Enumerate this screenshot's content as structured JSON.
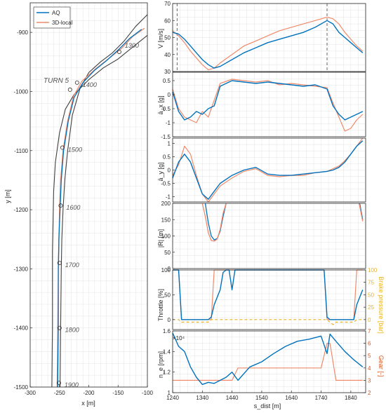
{
  "colors": {
    "aq": "#0072BD",
    "local": "#F08A6A",
    "track": "#404040",
    "brake": "#EDB120",
    "grid": "#e3e3e3"
  },
  "chart_data": [
    {
      "type": "line",
      "name": "track-map",
      "xlabel": "x [m]",
      "ylabel": "y [m]",
      "xlim": [
        -300,
        -100
      ],
      "ylim": [
        -1500,
        -850
      ],
      "xticks": [
        "-300",
        "-250",
        "-200",
        "-150",
        "-100"
      ],
      "yticks": [
        "-900",
        "-1000",
        "-1100",
        "-1200",
        "-1300",
        "-1400",
        "-1500"
      ],
      "grid": true,
      "legend": {
        "position": "top-left",
        "entries": [
          "AQ",
          "3D-local"
        ]
      },
      "annotation": "TURN 5",
      "series": [
        {
          "name": "AQ",
          "x": [
            -110,
            -130,
            -150,
            -170,
            -190,
            -210,
            -225,
            -235,
            -243,
            -247,
            -249,
            -251,
            -252,
            -252,
            -253
          ],
          "y": [
            -895,
            -910,
            -930,
            -948,
            -964,
            -985,
            -1010,
            -1050,
            -1100,
            -1150,
            -1200,
            -1250,
            -1300,
            -1400,
            -1500
          ]
        },
        {
          "name": "3D-local",
          "x": [
            -105,
            -125,
            -145,
            -168,
            -190,
            -212,
            -226,
            -236,
            -244,
            -248,
            -250,
            -251,
            -252,
            -253,
            -254
          ],
          "y": [
            -893,
            -907,
            -928,
            -946,
            -963,
            -983,
            -1008,
            -1050,
            -1100,
            -1150,
            -1200,
            -1250,
            -1300,
            -1400,
            -1500
          ]
        }
      ],
      "track_edges": [
        {
          "x": [
            -100,
            -120,
            -140,
            -160,
            -180,
            -200,
            -215,
            -228,
            -236,
            -241,
            -244,
            -246,
            -247,
            -248,
            -249
          ],
          "y": [
            -870,
            -890,
            -915,
            -935,
            -950,
            -968,
            -995,
            -1040,
            -1100,
            -1150,
            -1200,
            -1250,
            -1300,
            -1400,
            -1500
          ]
        },
        {
          "x": [
            -100,
            -125,
            -150,
            -175,
            -200,
            -225,
            -240,
            -250,
            -257,
            -260,
            -261,
            -262,
            -262,
            -262,
            -263
          ],
          "y": [
            -905,
            -925,
            -945,
            -960,
            -980,
            -1005,
            -1030,
            -1070,
            -1120,
            -1170,
            -1220,
            -1270,
            -1300,
            -1400,
            -1500
          ]
        }
      ],
      "markers": [
        {
          "label": "1300",
          "x": -148,
          "y": -933
        },
        {
          "label": "1400",
          "x": -220,
          "y": -985
        },
        {
          "label": "",
          "x": -232,
          "y": -997
        },
        {
          "label": "1500",
          "x": -245,
          "y": -1095
        },
        {
          "label": "1600",
          "x": -248,
          "y": -1193
        },
        {
          "label": "1700",
          "x": -250,
          "y": -1290
        },
        {
          "label": "1800",
          "x": -250,
          "y": -1400
        },
        {
          "label": "1900",
          "x": -251,
          "y": -1493
        }
      ]
    },
    {
      "type": "line",
      "name": "speed",
      "ylabel": "V [m/s]",
      "ylim": [
        30,
        70
      ],
      "yticks": [
        "30",
        "40",
        "50",
        "60",
        "70"
      ],
      "vlines": [
        1255,
        1760
      ],
      "x": [
        1240,
        1260,
        1280,
        1300,
        1320,
        1340,
        1360,
        1380,
        1400,
        1440,
        1480,
        1520,
        1560,
        1600,
        1640,
        1680,
        1720,
        1760,
        1780,
        1800,
        1820,
        1840,
        1860,
        1880
      ],
      "series": [
        {
          "name": "AQ",
          "values": [
            53,
            52,
            49,
            45,
            41,
            37,
            34,
            32,
            33,
            37,
            41,
            44,
            47,
            49,
            51,
            53,
            56,
            60,
            58,
            53,
            50,
            47,
            44,
            41
          ]
        },
        {
          "name": "3D-local",
          "values": [
            54,
            51,
            47,
            42,
            38,
            34,
            31,
            32,
            35,
            40,
            45,
            48,
            51,
            54,
            56,
            58,
            60,
            62,
            61,
            58,
            53,
            49,
            45,
            42
          ]
        }
      ]
    },
    {
      "type": "line",
      "name": "long-accel",
      "ylabel": "ā_x [g]",
      "ylim": [
        -1.5,
        0.8
      ],
      "yticks": [
        "-1.5",
        "-1",
        "-0.5",
        "0",
        "0.5"
      ],
      "x": [
        1240,
        1260,
        1280,
        1300,
        1320,
        1340,
        1360,
        1380,
        1400,
        1440,
        1480,
        1520,
        1560,
        1600,
        1640,
        1680,
        1720,
        1760,
        1780,
        1800,
        1820,
        1840,
        1860,
        1880
      ],
      "series": [
        {
          "name": "AQ",
          "values": [
            0.1,
            -0.6,
            -0.9,
            -0.8,
            -0.6,
            -0.7,
            -0.5,
            -0.4,
            0.3,
            0.5,
            0.45,
            0.4,
            0.45,
            0.4,
            0.35,
            0.3,
            0.35,
            0.2,
            -0.4,
            -0.7,
            -0.9,
            -0.8,
            -0.7,
            -0.6
          ]
        },
        {
          "name": "3D-local",
          "values": [
            0.2,
            -0.5,
            -0.8,
            -0.9,
            -1.0,
            -0.6,
            -0.8,
            -0.2,
            0.4,
            0.55,
            0.5,
            0.45,
            0.5,
            0.35,
            0.4,
            0.35,
            0.3,
            0.25,
            -0.3,
            -0.8,
            -1.3,
            -1.2,
            -0.9,
            -0.7
          ]
        }
      ]
    },
    {
      "type": "line",
      "name": "lat-accel",
      "ylabel": "ā_y [g]",
      "ylim": [
        -1.2,
        1.2
      ],
      "yticks": [
        "-1",
        "-0.5",
        "0",
        "0.5",
        "1"
      ],
      "x": [
        1240,
        1260,
        1280,
        1300,
        1320,
        1340,
        1360,
        1380,
        1400,
        1440,
        1480,
        1520,
        1560,
        1600,
        1640,
        1680,
        1720,
        1760,
        1780,
        1800,
        1820,
        1840,
        1860,
        1880
      ],
      "series": [
        {
          "name": "AQ",
          "values": [
            -0.3,
            0.3,
            0.6,
            0.3,
            -0.3,
            -0.9,
            -1.1,
            -0.8,
            -0.5,
            -0.2,
            0.0,
            0.1,
            -0.15,
            -0.2,
            -0.2,
            -0.15,
            -0.1,
            -0.05,
            0.0,
            0.1,
            0.3,
            0.6,
            0.9,
            1.1
          ]
        },
        {
          "name": "3D-local",
          "values": [
            -0.2,
            0.2,
            0.9,
            0.6,
            -0.2,
            -0.9,
            -1.2,
            -0.9,
            -0.6,
            -0.3,
            -0.05,
            0.05,
            -0.2,
            -0.25,
            -0.2,
            -0.2,
            -0.1,
            -0.05,
            0.05,
            0.15,
            0.35,
            0.6,
            0.9,
            1.2
          ]
        }
      ]
    },
    {
      "type": "line",
      "name": "radius",
      "ylabel": "|R| [m]",
      "ylim": [
        0,
        200
      ],
      "yticks": [
        "0",
        "50",
        "100",
        "150",
        "200"
      ],
      "segments": [
        {
          "name": "AQ",
          "x": [
            1350,
            1360,
            1370,
            1380,
            1390,
            1400,
            1410,
            1420
          ],
          "values": [
            200,
            140,
            100,
            88,
            92,
            115,
            160,
            200
          ]
        },
        {
          "name": "3D-local",
          "x": [
            1340,
            1350,
            1360,
            1370,
            1380,
            1390,
            1400,
            1410,
            1420
          ],
          "values": [
            200,
            160,
            110,
            86,
            84,
            90,
            120,
            170,
            200
          ]
        },
        {
          "name": "AQ",
          "x": [
            1870,
            1880
          ],
          "values": [
            200,
            150
          ]
        },
        {
          "name": "3D-local",
          "x": [
            1868,
            1880
          ],
          "values": [
            200,
            145
          ]
        }
      ]
    },
    {
      "type": "line",
      "name": "throttle-brake",
      "ylabel": "Throttle [%]",
      "y2label": "Brake pressure [bar]",
      "ylim": [
        -20,
        100
      ],
      "yticks": [
        "0",
        "50",
        "100"
      ],
      "y2ticks": [
        "0",
        "25",
        "50",
        "75",
        "100"
      ],
      "x": [
        1240,
        1250,
        1260,
        1270,
        1360,
        1370,
        1380,
        1400,
        1410,
        1420,
        1430,
        1440,
        1450,
        1460,
        1740,
        1750,
        1760,
        1770,
        1780,
        1790,
        1850,
        1860,
        1880
      ],
      "series": [
        {
          "name": "AQ",
          "values": [
            100,
            100,
            100,
            0,
            0,
            5,
            30,
            60,
            95,
            100,
            100,
            60,
            100,
            100,
            100,
            100,
            5,
            0,
            0,
            0,
            0,
            30,
            60
          ]
        },
        {
          "name": "3D-local",
          "values": [
            100,
            100,
            100,
            0,
            0,
            0,
            100,
            100,
            100,
            100,
            100,
            100,
            100,
            100,
            100,
            100,
            0,
            0,
            0,
            0,
            0,
            100,
            100
          ]
        },
        {
          "name": "brake",
          "values": [
            0,
            0,
            0,
            -5,
            -5,
            0,
            0,
            0,
            0,
            0,
            0,
            0,
            0,
            0,
            0,
            0,
            0,
            -5,
            -10,
            -5,
            -5,
            0,
            0
          ]
        }
      ]
    },
    {
      "type": "line",
      "name": "rpm-gear",
      "ylabel": "n_e [rpm]",
      "y2label": "Gear [-]",
      "xlabel": "s_dist [m]",
      "exponent": "×10⁴",
      "ylim": [
        1.0,
        1.6
      ],
      "yticks": [
        "1",
        "1.2",
        "1.4",
        "1.6"
      ],
      "y2ticks": [
        "2",
        "3",
        "4",
        "5",
        "6",
        "7"
      ],
      "xticks": [
        "1240",
        "1340",
        "1440",
        "1540",
        "1640",
        "1740",
        "1840"
      ],
      "xlim": [
        1240,
        1890
      ],
      "x": [
        1240,
        1260,
        1280,
        1300,
        1320,
        1340,
        1360,
        1380,
        1400,
        1420,
        1440,
        1460,
        1500,
        1540,
        1580,
        1620,
        1660,
        1700,
        1740,
        1760,
        1770,
        1790,
        1820,
        1850,
        1880
      ],
      "series": [
        {
          "name": "AQ",
          "values": [
            1.58,
            1.45,
            1.4,
            1.25,
            1.15,
            1.08,
            1.1,
            1.09,
            1.12,
            1.15,
            1.2,
            1.12,
            1.25,
            1.3,
            1.38,
            1.45,
            1.5,
            1.52,
            1.55,
            1.38,
            1.57,
            1.5,
            1.4,
            1.32,
            1.25
          ]
        },
        {
          "name": "gear",
          "values": [
            3,
            3,
            3,
            3,
            3,
            3,
            3,
            3,
            3,
            3,
            3,
            4,
            4,
            4,
            4,
            4,
            4,
            4,
            4,
            6,
            6,
            3,
            3,
            3,
            3
          ]
        }
      ]
    }
  ]
}
